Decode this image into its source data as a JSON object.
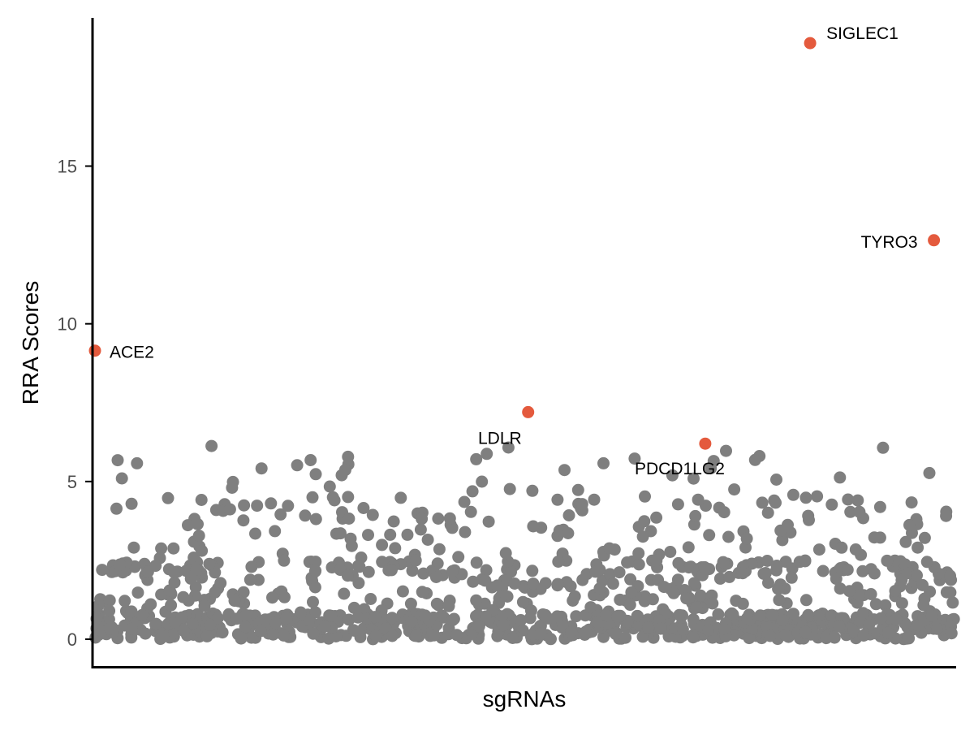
{
  "chart_data": {
    "type": "scatter",
    "title": "",
    "xlabel": "sgRNAs",
    "ylabel": "RRA Scores",
    "ylim": [
      -0.85,
      19.7
    ],
    "y_ticks": [
      "0",
      "5",
      "10",
      "15"
    ],
    "grid": false,
    "legend": "none",
    "background_series": {
      "color": "#7f7f7f",
      "count": 1100,
      "x_range": [
        0,
        1
      ],
      "y_max": 6.15,
      "distribution": "dense near 0, thinning toward ~6"
    },
    "highlighted": {
      "color": "#e45a3d",
      "points": [
        {
          "label": "ACE2",
          "x": 0.0,
          "y": 9.15
        },
        {
          "label": "LDLR",
          "x": 0.504,
          "y": 7.2
        },
        {
          "label": "PDCD1LG2",
          "x": 0.71,
          "y": 6.2
        },
        {
          "label": "SIGLEC1",
          "x": 0.832,
          "y": 18.9
        },
        {
          "label": "TYRO3",
          "x": 0.976,
          "y": 12.65
        }
      ]
    }
  }
}
